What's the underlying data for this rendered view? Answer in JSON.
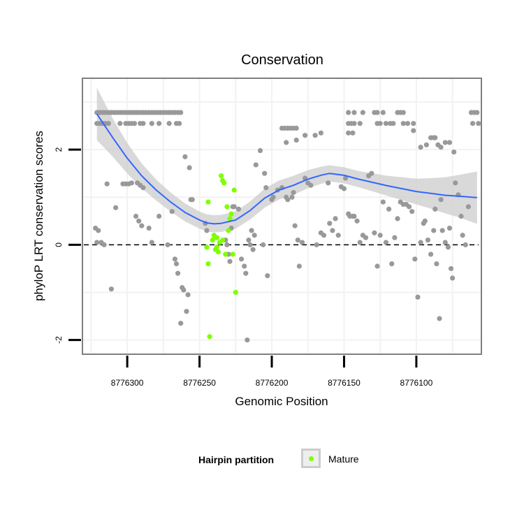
{
  "chart_data": {
    "type": "scatter",
    "title": "Conservation",
    "xlabel": "Genomic Position",
    "ylabel": "phyloP LRT conservation scores",
    "x_reversed": true,
    "xlim": [
      8776331,
      8776055
    ],
    "ylim": [
      -2.3,
      3.5
    ],
    "x_ticks": [
      8776300,
      8776250,
      8776200,
      8776150,
      8776100
    ],
    "y_ticks": [
      -2,
      0,
      2
    ],
    "hline": 0,
    "grid": true,
    "colors": {
      "Other": "#999999",
      "Mature": "#7fff00",
      "smooth": "#3366ff",
      "ribbon": "#cccccc"
    },
    "legend": {
      "title": "Hairpin partition",
      "entries": [
        "Mature"
      ],
      "position": "bottom"
    },
    "series": [
      {
        "group": "Other",
        "points": [
          [
            8776321,
            2.55
          ],
          [
            8776319,
            2.55
          ],
          [
            8776317,
            2.55
          ],
          [
            8776315,
            2.55
          ],
          [
            8776313,
            2.55
          ],
          [
            8776305,
            2.55
          ],
          [
            8776301,
            2.55
          ],
          [
            8776299,
            2.55
          ],
          [
            8776297,
            2.55
          ],
          [
            8776295,
            2.55
          ],
          [
            8776291,
            2.55
          ],
          [
            8776289,
            2.55
          ],
          [
            8776283,
            2.55
          ],
          [
            8776278,
            2.55
          ],
          [
            8776271,
            2.55
          ],
          [
            8776266,
            2.55
          ],
          [
            8776264,
            2.55
          ],
          [
            8776321,
            2.78
          ],
          [
            8776319,
            2.78
          ],
          [
            8776317,
            2.78
          ],
          [
            8776315,
            2.78
          ],
          [
            8776313,
            2.78
          ],
          [
            8776311,
            2.78
          ],
          [
            8776309,
            2.78
          ],
          [
            8776307,
            2.78
          ],
          [
            8776305,
            2.78
          ],
          [
            8776303,
            2.78
          ],
          [
            8776301,
            2.78
          ],
          [
            8776299,
            2.78
          ],
          [
            8776297,
            2.78
          ],
          [
            8776295,
            2.78
          ],
          [
            8776293,
            2.78
          ],
          [
            8776291,
            2.78
          ],
          [
            8776289,
            2.78
          ],
          [
            8776287,
            2.78
          ],
          [
            8776285,
            2.78
          ],
          [
            8776283,
            2.78
          ],
          [
            8776281,
            2.78
          ],
          [
            8776279,
            2.78
          ],
          [
            8776277,
            2.78
          ],
          [
            8776275,
            2.78
          ],
          [
            8776273,
            2.78
          ],
          [
            8776271,
            2.78
          ],
          [
            8776269,
            2.78
          ],
          [
            8776267,
            2.78
          ],
          [
            8776265,
            2.78
          ],
          [
            8776263,
            2.78
          ],
          [
            8776147,
            2.78
          ],
          [
            8776143,
            2.78
          ],
          [
            8776137,
            2.78
          ],
          [
            8776129,
            2.78
          ],
          [
            8776127,
            2.78
          ],
          [
            8776123,
            2.78
          ],
          [
            8776113,
            2.78
          ],
          [
            8776111,
            2.78
          ],
          [
            8776109,
            2.78
          ],
          [
            8776062,
            2.78
          ],
          [
            8776060,
            2.78
          ],
          [
            8776058,
            2.78
          ],
          [
            8776147,
            2.55
          ],
          [
            8776145,
            2.55
          ],
          [
            8776143,
            2.55
          ],
          [
            8776139,
            2.55
          ],
          [
            8776127,
            2.55
          ],
          [
            8776125,
            2.55
          ],
          [
            8776121,
            2.55
          ],
          [
            8776118,
            2.55
          ],
          [
            8776116,
            2.55
          ],
          [
            8776109,
            2.55
          ],
          [
            8776106,
            2.55
          ],
          [
            8776102,
            2.55
          ],
          [
            8776061,
            2.55
          ],
          [
            8776057,
            2.55
          ],
          [
            8776193,
            2.45
          ],
          [
            8776191,
            2.45
          ],
          [
            8776189,
            2.45
          ],
          [
            8776187,
            2.45
          ],
          [
            8776185,
            2.45
          ],
          [
            8776183,
            2.45
          ],
          [
            8776190,
            2.15
          ],
          [
            8776183,
            2.2
          ],
          [
            8776177,
            2.3
          ],
          [
            8776170,
            2.3
          ],
          [
            8776166,
            2.35
          ],
          [
            8776147,
            2.35
          ],
          [
            8776144,
            2.35
          ],
          [
            8776102,
            2.4
          ],
          [
            8776090,
            2.25
          ],
          [
            8776088,
            2.25
          ],
          [
            8776085,
            2.1
          ],
          [
            8776083,
            2.05
          ],
          [
            8776080,
            2.15
          ],
          [
            8776077,
            2.15
          ],
          [
            8776074,
            1.95
          ],
          [
            8776097,
            2.05
          ],
          [
            8776093,
            2.1
          ],
          [
            8776087,
            2.25
          ],
          [
            8776322,
            0.35
          ],
          [
            8776320,
            0.3
          ],
          [
            8776318,
            0.05
          ],
          [
            8776321,
            0.05
          ],
          [
            8776316,
            -0.0
          ],
          [
            8776311,
            -0.93
          ],
          [
            8776308,
            0.78
          ],
          [
            8776314,
            1.28
          ],
          [
            8776303,
            1.28
          ],
          [
            8776301,
            1.28
          ],
          [
            8776299,
            1.28
          ],
          [
            8776297,
            1.3
          ],
          [
            8776293,
            1.3
          ],
          [
            8776291,
            1.25
          ],
          [
            8776289,
            1.2
          ],
          [
            8776294,
            0.6
          ],
          [
            8776292,
            0.5
          ],
          [
            8776290,
            0.4
          ],
          [
            8776285,
            0.35
          ],
          [
            8776283,
            0.05
          ],
          [
            8776278,
            0.6
          ],
          [
            8776272,
            0.0
          ],
          [
            8776269,
            0.7
          ],
          [
            8776267,
            -0.3
          ],
          [
            8776266,
            -0.4
          ],
          [
            8776265,
            -0.6
          ],
          [
            8776262,
            -0.9
          ],
          [
            8776261,
            -0.95
          ],
          [
            8776263,
            -1.65
          ],
          [
            8776259,
            -1.4
          ],
          [
            8776258,
            -1.05
          ],
          [
            8776260,
            1.85
          ],
          [
            8776257,
            1.62
          ],
          [
            8776256,
            0.95
          ],
          [
            8776255,
            0.95
          ],
          [
            8776246,
            0.45
          ],
          [
            8776245,
            0.3
          ],
          [
            8776232,
            0.1
          ],
          [
            8776231,
            0.0
          ],
          [
            8776230,
            -0.2
          ],
          [
            8776229,
            -0.35
          ],
          [
            8776228,
            0.35
          ],
          [
            8776227,
            0.8
          ],
          [
            8776226,
            0.8
          ],
          [
            8776223,
            0.75
          ],
          [
            8776221,
            -0.3
          ],
          [
            8776219,
            -0.45
          ],
          [
            8776218,
            -0.6
          ],
          [
            8776217,
            -2.0
          ],
          [
            8776216,
            0.1
          ],
          [
            8776215,
            0.0
          ],
          [
            8776214,
            0.3
          ],
          [
            8776213,
            -0.1
          ],
          [
            8776212,
            0.2
          ],
          [
            8776211,
            1.68
          ],
          [
            8776208,
            1.98
          ],
          [
            8776206,
            0.0
          ],
          [
            8776205,
            1.5
          ],
          [
            8776204,
            1.2
          ],
          [
            8776203,
            -0.65
          ],
          [
            8776200,
            0.95
          ],
          [
            8776199,
            1.0
          ],
          [
            8776196,
            1.15
          ],
          [
            8776193,
            1.2
          ],
          [
            8776190,
            1.0
          ],
          [
            8776189,
            0.95
          ],
          [
            8776186,
            1.0
          ],
          [
            8776185,
            1.1
          ],
          [
            8776184,
            0.4
          ],
          [
            8776182,
            0.1
          ],
          [
            8776181,
            -0.45
          ],
          [
            8776179,
            0.05
          ],
          [
            8776177,
            1.4
          ],
          [
            8776175,
            1.3
          ],
          [
            8776173,
            1.25
          ],
          [
            8776169,
            0.0
          ],
          [
            8776166,
            0.25
          ],
          [
            8776164,
            0.2
          ],
          [
            8776161,
            1.3
          ],
          [
            8776160,
            0.45
          ],
          [
            8776158,
            0.3
          ],
          [
            8776156,
            0.55
          ],
          [
            8776154,
            0.2
          ],
          [
            8776152,
            1.22
          ],
          [
            8776150,
            1.18
          ],
          [
            8776149,
            1.4
          ],
          [
            8776147,
            0.65
          ],
          [
            8776146,
            0.6
          ],
          [
            8776144,
            0.6
          ],
          [
            8776143,
            0.6
          ],
          [
            8776141,
            0.5
          ],
          [
            8776139,
            0.05
          ],
          [
            8776137,
            0.2
          ],
          [
            8776135,
            0.15
          ],
          [
            8776133,
            1.45
          ],
          [
            8776131,
            1.5
          ],
          [
            8776129,
            0.25
          ],
          [
            8776127,
            -0.45
          ],
          [
            8776125,
            0.2
          ],
          [
            8776123,
            0.9
          ],
          [
            8776121,
            0.05
          ],
          [
            8776119,
            0.75
          ],
          [
            8776117,
            -0.4
          ],
          [
            8776115,
            0.15
          ],
          [
            8776113,
            0.55
          ],
          [
            8776111,
            0.9
          ],
          [
            8776109,
            0.85
          ],
          [
            8776107,
            0.85
          ],
          [
            8776105,
            0.8
          ],
          [
            8776103,
            0.7
          ],
          [
            8776101,
            -0.3
          ],
          [
            8776099,
            -1.1
          ],
          [
            8776097,
            0.05
          ],
          [
            8776095,
            0.45
          ],
          [
            8776094,
            0.5
          ],
          [
            8776092,
            0.1
          ],
          [
            8776090,
            -0.2
          ],
          [
            8776088,
            0.3
          ],
          [
            8776086,
            -0.4
          ],
          [
            8776084,
            -1.55
          ],
          [
            8776082,
            0.3
          ],
          [
            8776080,
            0.05
          ],
          [
            8776078,
            -0.05
          ],
          [
            8776076,
            -0.5
          ],
          [
            8776075,
            -0.7
          ],
          [
            8776073,
            1.3
          ],
          [
            8776071,
            1.05
          ],
          [
            8776069,
            0.6
          ],
          [
            8776068,
            0.2
          ],
          [
            8776066,
            0.0
          ],
          [
            8776064,
            0.8
          ],
          [
            8776083,
            0.95
          ],
          [
            8776087,
            0.75
          ],
          [
            8776077,
            0.35
          ]
        ]
      },
      {
        "group": "Mature",
        "points": [
          [
            8776244,
            0.9
          ],
          [
            8776245,
            -0.05
          ],
          [
            8776244,
            -0.4
          ],
          [
            8776243,
            -1.93
          ],
          [
            8776241,
            0.1
          ],
          [
            8776240,
            0.2
          ],
          [
            8776239,
            -0.1
          ],
          [
            8776238,
            0.15
          ],
          [
            8776237,
            -0.15
          ],
          [
            8776236,
            0.05
          ],
          [
            8776235,
            1.45
          ],
          [
            8776234,
            1.35
          ],
          [
            8776233,
            1.3
          ],
          [
            8776232,
            -0.2
          ],
          [
            8776231,
            0.8
          ],
          [
            8776230,
            0.3
          ],
          [
            8776229,
            0.55
          ],
          [
            8776228,
            0.65
          ],
          [
            8776227,
            -0.2
          ],
          [
            8776226,
            1.15
          ],
          [
            8776225,
            -1.0
          ],
          [
            8776236,
            0.05
          ],
          [
            8776234,
            0.1
          ],
          [
            8776238,
            -0.05
          ]
        ]
      }
    ],
    "smooth_curve": [
      [
        8776321,
        2.75
      ],
      [
        8776310,
        2.25
      ],
      [
        8776300,
        1.82
      ],
      [
        8776290,
        1.45
      ],
      [
        8776280,
        1.15
      ],
      [
        8776270,
        0.9
      ],
      [
        8776260,
        0.68
      ],
      [
        8776250,
        0.52
      ],
      [
        8776245,
        0.46
      ],
      [
        8776240,
        0.44
      ],
      [
        8776235,
        0.45
      ],
      [
        8776225,
        0.52
      ],
      [
        8776215,
        0.72
      ],
      [
        8776205,
        0.98
      ],
      [
        8776195,
        1.15
      ],
      [
        8776185,
        1.25
      ],
      [
        8776175,
        1.38
      ],
      [
        8776165,
        1.47
      ],
      [
        8776160,
        1.5
      ],
      [
        8776150,
        1.46
      ],
      [
        8776140,
        1.38
      ],
      [
        8776130,
        1.31
      ],
      [
        8776120,
        1.24
      ],
      [
        8776110,
        1.18
      ],
      [
        8776100,
        1.12
      ],
      [
        8776090,
        1.08
      ],
      [
        8776080,
        1.04
      ],
      [
        8776070,
        1.02
      ],
      [
        8776058,
        0.99
      ]
    ],
    "ribbon_halfwidth": [
      0.55,
      0.4,
      0.32,
      0.26,
      0.22,
      0.2,
      0.19,
      0.18,
      0.18,
      0.18,
      0.18,
      0.18,
      0.19,
      0.2,
      0.2,
      0.2,
      0.19,
      0.18,
      0.17,
      0.17,
      0.17,
      0.19,
      0.21,
      0.24,
      0.27,
      0.32,
      0.38,
      0.45,
      0.55
    ]
  }
}
